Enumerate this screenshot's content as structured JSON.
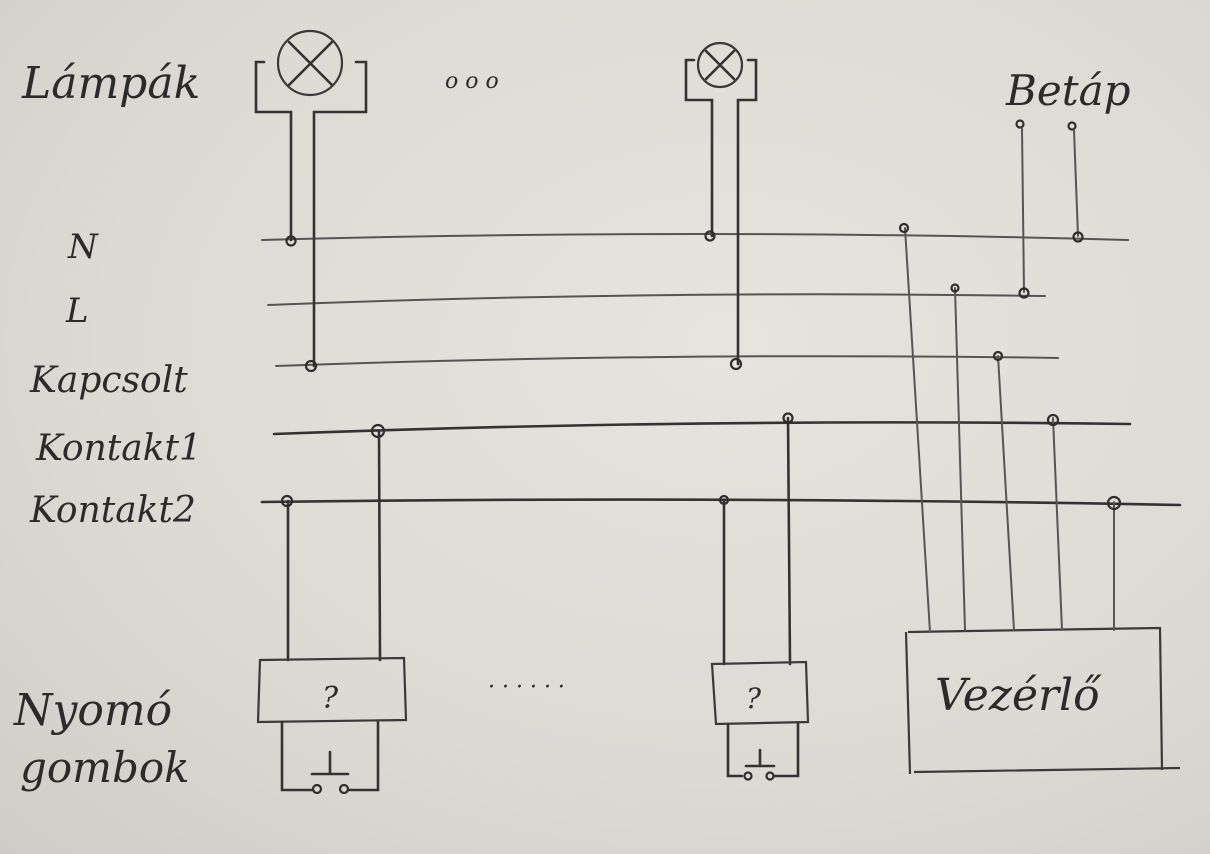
{
  "labels": {
    "lamps": "Lámpák",
    "power": "Betáp",
    "bus_n": "N",
    "bus_l": "L",
    "bus_switched": "Kapcsolt",
    "bus_contact1": "Kontakt1",
    "bus_contact2": "Kontakt2",
    "buttons_line1": "Nyomó",
    "buttons_line2": "gombok",
    "controller": "Vezérlő",
    "unknown_1": "?",
    "unknown_2": "?",
    "dots_lamps": "o   o   o",
    "dots_buttons": "·   ·   ·   ·   ·   ·"
  }
}
